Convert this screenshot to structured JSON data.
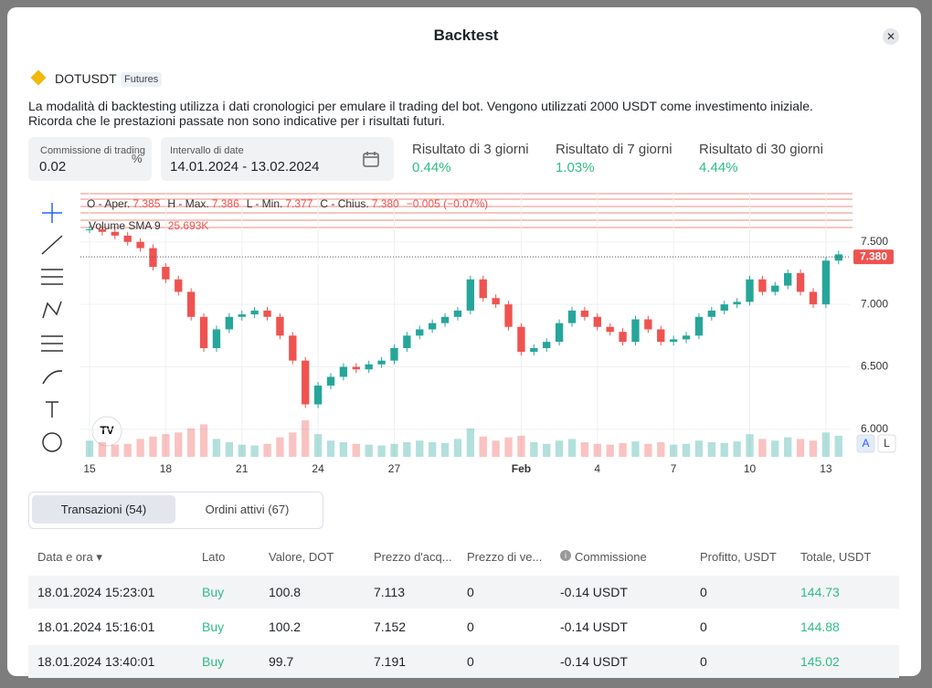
{
  "header": {
    "title": "Backtest"
  },
  "symbol": {
    "name": "DOTUSDT",
    "badge": "Futures"
  },
  "description": [
    "La modalità di backtesting utilizza i dati cronologici per emulare il trading del bot. Vengono utilizzati 2000 USDT come investimento iniziale.",
    "Ricorda che le prestazioni passate non sono indicative per i risultati futuri."
  ],
  "inputs": [
    {
      "label": "Commissione di trading",
      "value": "0.02",
      "unit": "%"
    },
    {
      "label": "Intervallo di date",
      "value": "14.01.2024 - 13.02.2024"
    }
  ],
  "results": [
    {
      "label": "Risultato di 3 giorni",
      "value": "0.44%"
    },
    {
      "label": "Risultato di 7 giorni",
      "value": "1.03%"
    },
    {
      "label": "Risultato di 30 giorni",
      "value": "4.44%"
    }
  ],
  "chart_data": {
    "type": "candlestick",
    "legend": {
      "open_label": "O - Aper.",
      "open": "7.385",
      "high_label": "H - Max.",
      "high": "7.386",
      "low_label": "L - Min.",
      "low": "7.377",
      "close_label": "C - Chius.",
      "close": "7.380",
      "change": "−0.005 (−0.07%)",
      "volume_label": "Volume SMA 9",
      "volume": "25.693K"
    },
    "last_price": {
      "value": 7.38,
      "label": "7.380"
    },
    "x": [
      1,
      1.5,
      2,
      2.5,
      3,
      3.5,
      4,
      4.5,
      5,
      5.5,
      6,
      6.5,
      7,
      7.5,
      8,
      8.5,
      9,
      9.5,
      10,
      10.5,
      11,
      11.5,
      12,
      12.5,
      13,
      13.5,
      14,
      14.5,
      15,
      15.5,
      16,
      16.5,
      17,
      17.5,
      18,
      18.5,
      19,
      19.5,
      20,
      20.5,
      21,
      21.5,
      22,
      22.5,
      23,
      23.5,
      24,
      24.5,
      25,
      25.5,
      26,
      26.5,
      27,
      27.5,
      28,
      28.5,
      29,
      29.5,
      30,
      30.5
    ],
    "close": [
      7.6,
      7.58,
      7.55,
      7.5,
      7.45,
      7.3,
      7.2,
      7.1,
      6.9,
      6.65,
      6.8,
      6.9,
      6.92,
      6.95,
      6.9,
      6.75,
      6.55,
      6.2,
      6.35,
      6.42,
      6.5,
      6.48,
      6.52,
      6.55,
      6.65,
      6.75,
      6.8,
      6.85,
      6.9,
      6.95,
      7.2,
      7.05,
      7.0,
      6.82,
      6.62,
      6.65,
      6.7,
      6.85,
      6.95,
      6.9,
      6.82,
      6.78,
      6.7,
      6.88,
      6.8,
      6.7,
      6.72,
      6.75,
      6.9,
      6.95,
      7.0,
      7.02,
      7.2,
      7.1,
      7.15,
      7.25,
      7.1,
      7.0,
      7.35,
      7.4
    ],
    "volume": [
      20,
      18,
      15,
      16,
      22,
      25,
      28,
      30,
      35,
      40,
      22,
      18,
      15,
      14,
      16,
      24,
      30,
      45,
      28,
      20,
      18,
      16,
      15,
      14,
      16,
      18,
      20,
      18,
      17,
      22,
      35,
      25,
      20,
      24,
      26,
      18,
      16,
      20,
      22,
      18,
      16,
      15,
      17,
      19,
      16,
      18,
      15,
      16,
      20,
      18,
      17,
      19,
      28,
      22,
      20,
      24,
      22,
      20,
      30,
      26
    ],
    "xlim": [
      0.64,
      30.94
    ],
    "xticks": [
      {
        "value": 1,
        "label": "15"
      },
      {
        "value": 4,
        "label": "18"
      },
      {
        "value": 7,
        "label": "21"
      },
      {
        "value": 10,
        "label": "24"
      },
      {
        "value": 13,
        "label": "27"
      },
      {
        "value": 18,
        "label": "Feb"
      },
      {
        "value": 21,
        "label": "4"
      },
      {
        "value": 24,
        "label": "7"
      },
      {
        "value": 27,
        "label": "10"
      },
      {
        "value": 30,
        "label": "13"
      }
    ],
    "ylim": [
      5.78,
      7.9
    ],
    "yticks": [
      {
        "value": 7.5,
        "label": "7.500"
      },
      {
        "value": 7.0,
        "label": "7.000"
      },
      {
        "value": 6.5,
        "label": "6.500"
      },
      {
        "value": 6.0,
        "label": "6.000"
      }
    ],
    "up_color": "#26a69a",
    "down_color": "#ef5350",
    "grid": true,
    "scale_buttons": [
      "A",
      "L"
    ]
  },
  "tabs": [
    "Transazioni (54)",
    "Ordini attivi (67)"
  ],
  "table": {
    "headers": [
      "Data e ora ▾",
      "Lato",
      "Valore, DOT",
      "Prezzo d'acq...",
      "Prezzo di ve...",
      "Commissione",
      "Profitto, USDT",
      "Totale, USDT"
    ],
    "rows": [
      [
        "18.01.2024 15:23:01",
        "Buy",
        "100.8",
        "7.113",
        "0",
        "-0.14 USDT",
        "0",
        "144.73"
      ],
      [
        "18.01.2024 15:16:01",
        "Buy",
        "100.2",
        "7.152",
        "0",
        "-0.14 USDT",
        "0",
        "144.88"
      ],
      [
        "18.01.2024 13:40:01",
        "Buy",
        "99.7",
        "7.191",
        "0",
        "-0.14 USDT",
        "0",
        "145.02"
      ]
    ]
  }
}
